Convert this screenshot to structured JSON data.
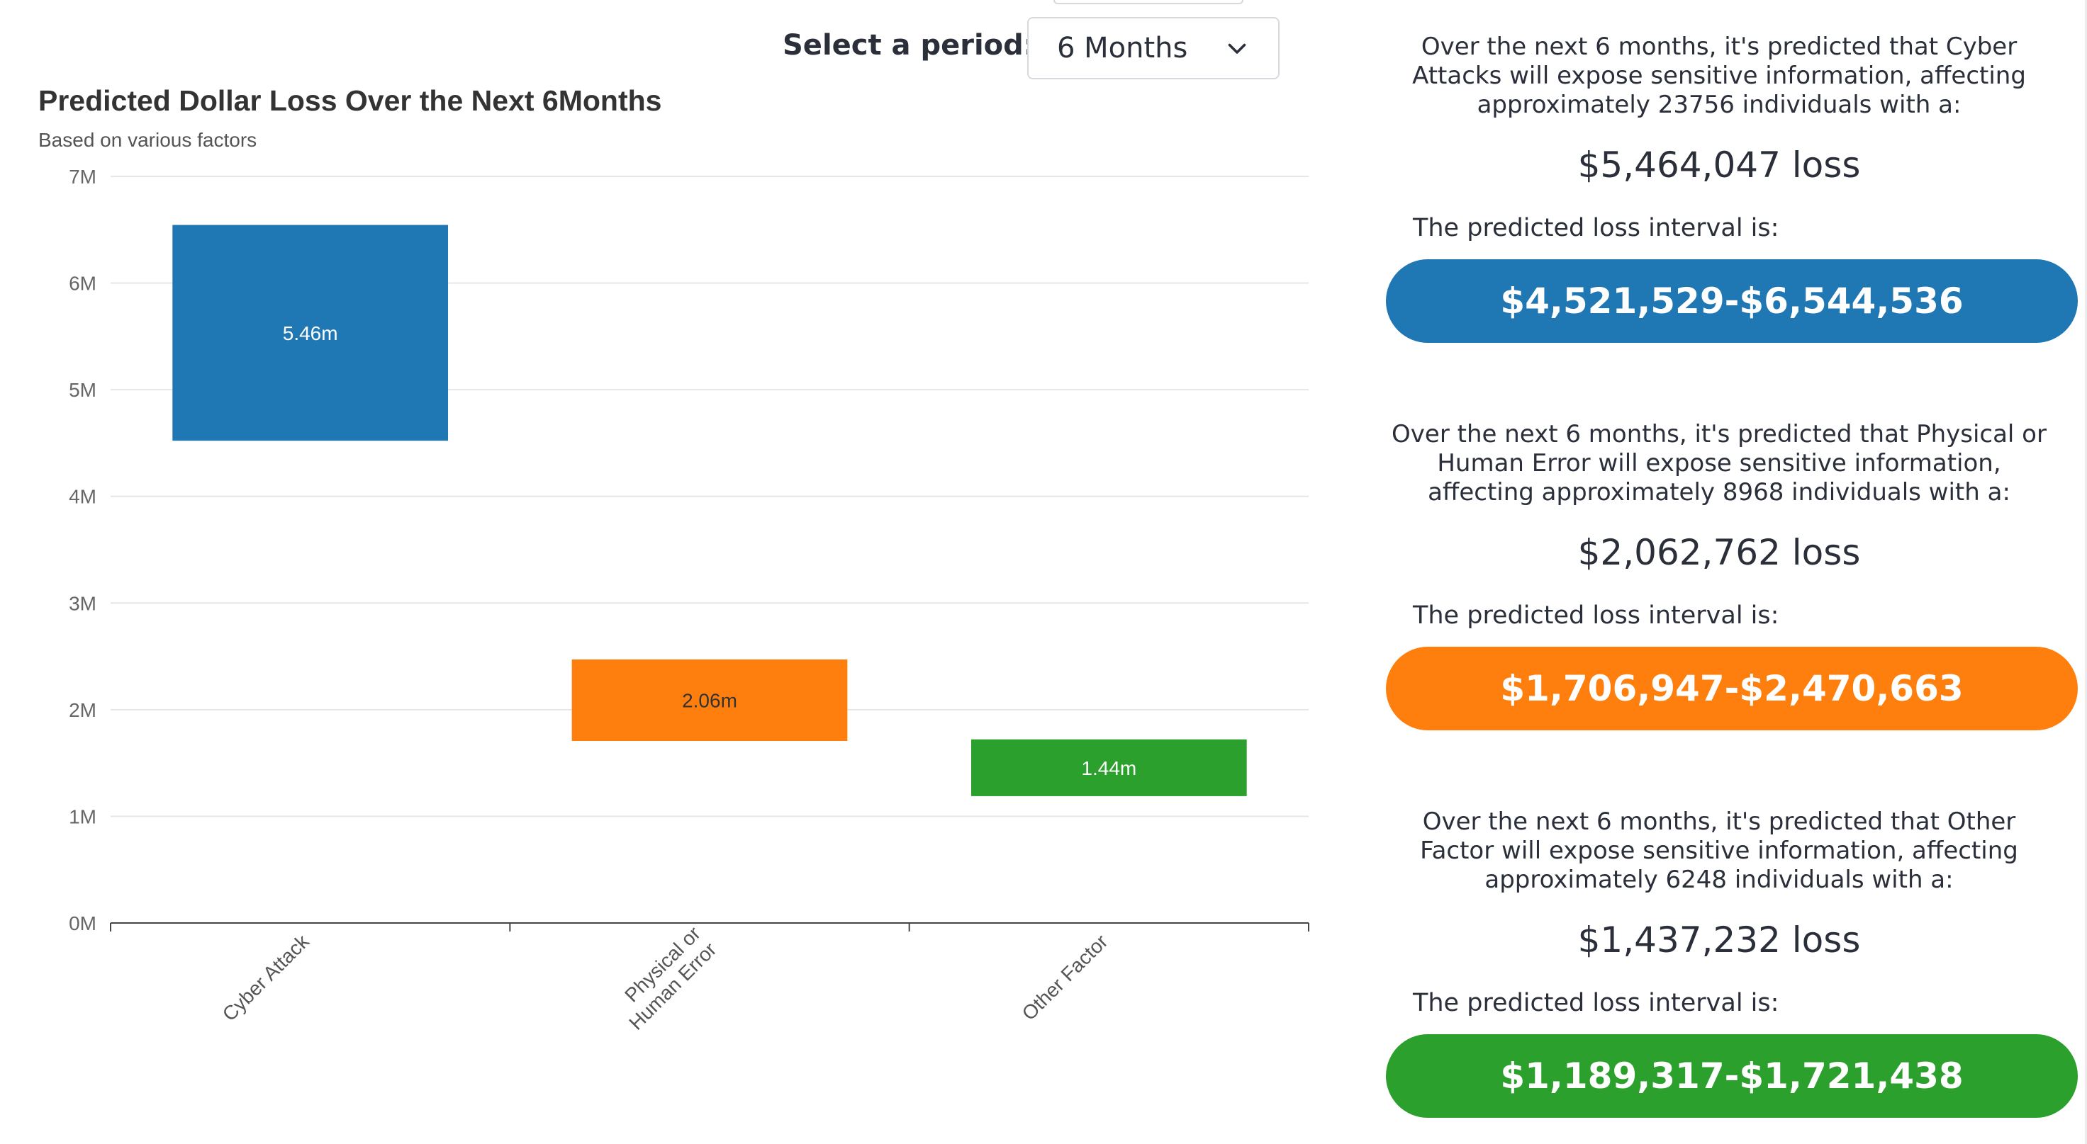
{
  "period": {
    "label": "Select a period:-",
    "selected": "6 Months"
  },
  "chart_data": {
    "type": "bar",
    "title": "Predicted Dollar Loss Over the Next 6Months",
    "subtitle": "Based on various factors",
    "categories": [
      "Cyber Attack",
      "Physical or Human Error",
      "Other Factor"
    ],
    "category_label_lines": [
      [
        "Cyber Attack"
      ],
      [
        "Physical or",
        "Human Error"
      ],
      [
        "Other Factor"
      ]
    ],
    "ranges": [
      {
        "low": 4.521529,
        "high": 6.544536
      },
      {
        "low": 1.706947,
        "high": 2.470663
      },
      {
        "low": 1.189317,
        "high": 1.721438
      }
    ],
    "data_labels": [
      "5.46m",
      "2.06m",
      "1.44m"
    ],
    "colors": [
      "#1f77b4",
      "#ff7f0e",
      "#2ca02c"
    ],
    "ylim": [
      0,
      7
    ],
    "yticks": [
      0,
      1,
      2,
      3,
      4,
      5,
      6,
      7
    ],
    "ytick_labels": [
      "0M",
      "1M",
      "2M",
      "3M",
      "4M",
      "5M",
      "6M",
      "7M"
    ],
    "grid": true,
    "xlabel": "",
    "ylabel": ""
  },
  "predictions": [
    {
      "text": "Over the next 6 months, it's predicted that Cyber Attacks will expose sensitive information, affecting approximately 23756 individuals with a:",
      "loss": "$5,464,047 loss",
      "interval_label": "The predicted loss interval is:",
      "interval": "$4,521,529-$6,544,536",
      "color": "#1f77b4"
    },
    {
      "text": "Over the next 6 months, it's predicted that Physical or Human Error will expose sensitive information, affecting approximately 8968 individuals with a:",
      "loss": "$2,062,762 loss",
      "interval_label": "The predicted loss interval is:",
      "interval": "$1,706,947-$2,470,663",
      "color": "#ff7f0e"
    },
    {
      "text": "Over the next 6 months, it's predicted that Other Factor will expose sensitive information, affecting approximately 6248 individuals with a:",
      "loss": "$1,437,232 loss",
      "interval_label": "The predicted loss interval is:",
      "interval": "$1,189,317-$1,721,438",
      "color": "#2ca02c"
    }
  ],
  "icons": {
    "dropdown": "chevron-down-icon"
  }
}
